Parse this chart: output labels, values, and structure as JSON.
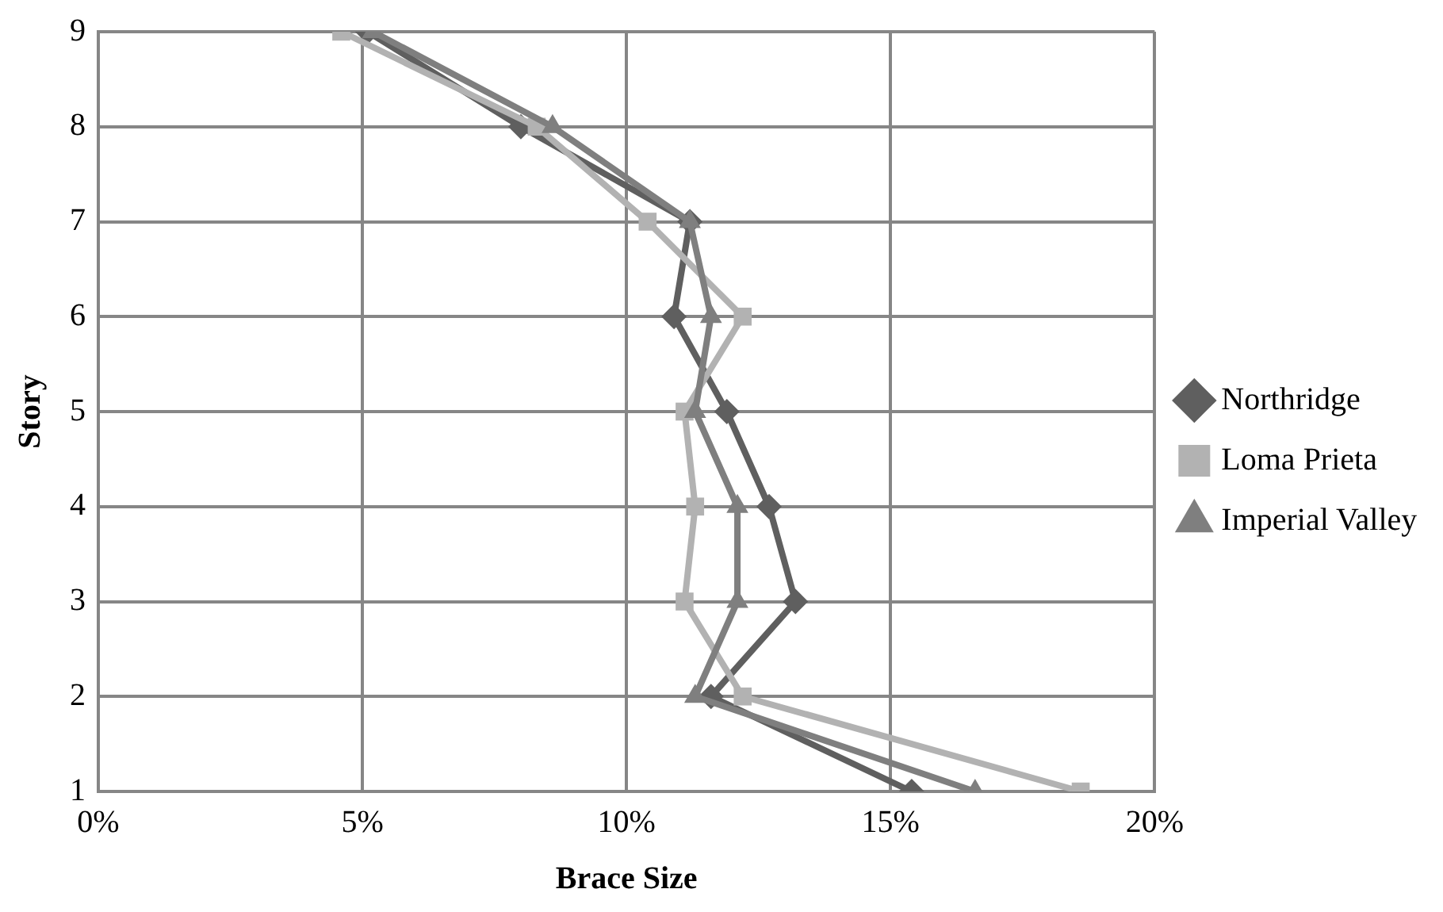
{
  "chart_data": {
    "type": "line",
    "xlabel": "Brace Size",
    "ylabel": "Story",
    "series": [
      {
        "name": "Northridge",
        "color": "#5f5f5f",
        "marker": "diamond",
        "x": [
          15.4,
          11.6,
          13.2,
          12.7,
          11.9,
          10.9,
          11.2,
          8.0,
          5.1
        ],
        "values": [
          1,
          2,
          3,
          4,
          5,
          6,
          7,
          8,
          9
        ]
      },
      {
        "name": "Loma Prieta",
        "color": "#b2b2b2",
        "marker": "square",
        "x": [
          18.6,
          12.2,
          11.1,
          11.3,
          11.1,
          12.2,
          10.4,
          8.3,
          4.6
        ],
        "values": [
          1,
          2,
          3,
          4,
          5,
          6,
          7,
          8,
          9
        ]
      },
      {
        "name": "Imperial Valley",
        "color": "#7f7f7f",
        "marker": "triangle",
        "x": [
          16.6,
          11.3,
          12.1,
          12.1,
          11.3,
          11.6,
          11.2,
          8.6,
          5.2
        ],
        "values": [
          1,
          2,
          3,
          4,
          5,
          6,
          7,
          8,
          9
        ]
      }
    ],
    "xlim": [
      0,
      20
    ],
    "xticks": [
      {
        "value": 0,
        "label": "0%"
      },
      {
        "value": 5,
        "label": "5%"
      },
      {
        "value": 10,
        "label": "10%"
      },
      {
        "value": 15,
        "label": "15%"
      },
      {
        "value": 20,
        "label": "20%"
      }
    ],
    "ylim": [
      1,
      9
    ],
    "yticks": [
      1,
      2,
      3,
      4,
      5,
      6,
      7,
      8,
      9
    ],
    "grid": true,
    "legend": "right",
    "line_style": "solid"
  }
}
